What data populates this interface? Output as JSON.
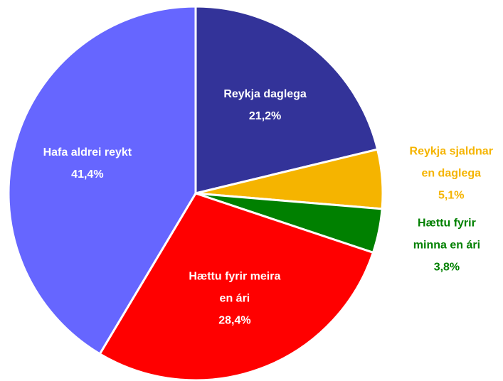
{
  "chart_data": {
    "type": "pie",
    "categories": [
      "Reykja daglega",
      "Reykja sjaldnar en daglega",
      "Hættu fyrir minna en ári",
      "Hættu fyrir meira en ári",
      "Hafa aldrei reykt"
    ],
    "values": [
      21.2,
      5.1,
      3.8,
      28.4,
      41.4
    ],
    "value_labels": [
      "21,2%",
      "5,1%",
      "3,8%",
      "28,4%",
      "41,4%"
    ],
    "colors": [
      "#333399",
      "#f5b400",
      "#008000",
      "#ff0000",
      "#6666ff"
    ]
  }
}
